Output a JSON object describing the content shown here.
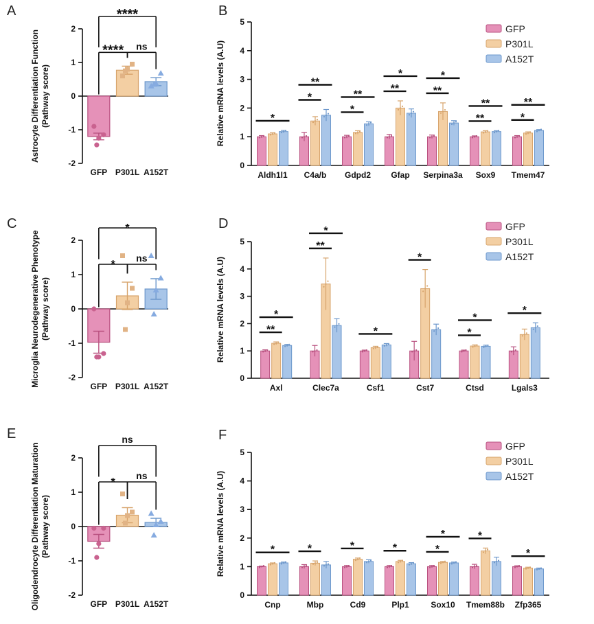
{
  "colors": {
    "GFP": "#e591b8",
    "P301L": "#f3cfa3",
    "A152T": "#a8c5e8",
    "GFP_edge": "#b8507f",
    "P301L_edge": "#d7a46c",
    "A152T_edge": "#6d98cc",
    "GFP_dot": "#c9628f",
    "P301L_dot": "#e1b385",
    "A152T_dot": "#86abe0"
  },
  "chart_data": [
    {
      "id": "A",
      "letter": "A",
      "type": "bar",
      "title": "",
      "ylabel": [
        "Astrocyte Differentiation Function",
        "(Pathway score)"
      ],
      "ylim": [
        -2,
        2
      ],
      "yticks": [
        -2,
        -1,
        0,
        1,
        2
      ],
      "categories": [
        "GFP",
        "P301L",
        "A152T"
      ],
      "values": [
        -1.2,
        0.77,
        0.43
      ],
      "errors": [
        0.1,
        0.12,
        0.12
      ],
      "points": [
        [
          -0.9,
          -1.15,
          -1.25,
          -1.45
        ],
        [
          0.6,
          0.95,
          0.8,
          0.75
        ],
        [
          0.3,
          0.68,
          0.38,
          0.35
        ]
      ],
      "comparisons": [
        {
          "from": 0,
          "to": 1,
          "label": "****",
          "level": 1
        },
        {
          "from": 1,
          "to": 2,
          "label": "ns",
          "level": 1
        },
        {
          "from": 0,
          "to": 2,
          "label": "****",
          "level": 2
        }
      ]
    },
    {
      "id": "C",
      "letter": "C",
      "type": "bar",
      "title": "",
      "ylabel": [
        "Microglia Neurodegenerative Phenotype",
        "(Pathway score)"
      ],
      "ylim": [
        -2,
        2
      ],
      "yticks": [
        -2,
        -1,
        0,
        1,
        2
      ],
      "categories": [
        "GFP",
        "P301L",
        "A152T"
      ],
      "values": [
        -0.97,
        0.38,
        0.58
      ],
      "errors": [
        0.32,
        0.4,
        0.3
      ],
      "points": [
        [
          0,
          -1.3,
          -1.4,
          -1.4
        ],
        [
          1.55,
          0.6,
          0.18,
          -0.6
        ],
        [
          1.55,
          0.9,
          0.55,
          -0.15
        ]
      ],
      "comparisons": [
        {
          "from": 0,
          "to": 1,
          "label": "*",
          "level": 1
        },
        {
          "from": 1,
          "to": 2,
          "label": "ns",
          "level": 1
        },
        {
          "from": 0,
          "to": 2,
          "label": "*",
          "level": 2
        }
      ]
    },
    {
      "id": "E",
      "letter": "E",
      "type": "bar",
      "title": "",
      "ylabel": [
        "Oligodendrocyte Differentiation Maturation",
        "(Pathway score)"
      ],
      "ylim": [
        -2,
        2
      ],
      "yticks": [
        -2,
        -1,
        0,
        1,
        2
      ],
      "categories": [
        "GFP",
        "P301L",
        "A152T"
      ],
      "values": [
        -0.43,
        0.33,
        0.12
      ],
      "errors": [
        0.2,
        0.22,
        0.12
      ],
      "points": [
        [
          -0.05,
          -0.05,
          -0.5,
          -0.9
        ],
        [
          0.95,
          0.42,
          0.32,
          0.1
        ],
        [
          0.38,
          0.15,
          0.05,
          -0.25
        ]
      ],
      "comparisons": [
        {
          "from": 0,
          "to": 1,
          "label": "*",
          "level": 1
        },
        {
          "from": 1,
          "to": 2,
          "label": "ns",
          "level": 1
        },
        {
          "from": 0,
          "to": 2,
          "label": "ns",
          "level": 2
        }
      ]
    },
    {
      "id": "B",
      "letter": "B",
      "type": "bar",
      "title": "",
      "ylabel": [
        "Relative mRNA levels (A.U)"
      ],
      "ylim": [
        0,
        5
      ],
      "yticks": [
        0,
        1,
        2,
        3,
        4,
        5
      ],
      "legend": [
        "GFP",
        "P301L",
        "A152T"
      ],
      "categories": [
        "Aldh1l1",
        "C4a/b",
        "Gdpd2",
        "Gfap",
        "Serpina3a",
        "Sox9",
        "Tmem47"
      ],
      "series": [
        {
          "name": "GFP",
          "values": [
            1.0,
            1.0,
            1.0,
            1.0,
            1.0,
            1.0,
            1.0
          ],
          "errors": [
            0.04,
            0.15,
            0.05,
            0.08,
            0.06,
            0.03,
            0.04
          ]
        },
        {
          "name": "P301L",
          "values": [
            1.1,
            1.55,
            1.15,
            2.0,
            1.88,
            1.17,
            1.13
          ],
          "errors": [
            0.04,
            0.15,
            0.06,
            0.25,
            0.3,
            0.04,
            0.04
          ]
        },
        {
          "name": "A152T",
          "values": [
            1.18,
            1.75,
            1.45,
            1.82,
            1.48,
            1.18,
            1.22
          ],
          "errors": [
            0.04,
            0.2,
            0.07,
            0.15,
            0.08,
            0.03,
            0.03
          ]
        }
      ],
      "comparisons": [
        {
          "group": 0,
          "from": 0,
          "to": 2,
          "label": "*",
          "level": 1
        },
        {
          "group": 1,
          "from": 0,
          "to": 1,
          "label": "*",
          "level": 1
        },
        {
          "group": 1,
          "from": 0,
          "to": 2,
          "label": "**",
          "level": 2
        },
        {
          "group": 2,
          "from": 0,
          "to": 1,
          "label": "*",
          "level": 1
        },
        {
          "group": 2,
          "from": 0,
          "to": 2,
          "label": "**",
          "level": 2
        },
        {
          "group": 3,
          "from": 0,
          "to": 1,
          "label": "**",
          "level": 1
        },
        {
          "group": 3,
          "from": 0,
          "to": 2,
          "label": "*",
          "level": 2
        },
        {
          "group": 4,
          "from": 0,
          "to": 1,
          "label": "**",
          "level": 1
        },
        {
          "group": 4,
          "from": 0,
          "to": 2,
          "label": "*",
          "level": 2
        },
        {
          "group": 5,
          "from": 0,
          "to": 1,
          "label": "**",
          "level": 1
        },
        {
          "group": 5,
          "from": 0,
          "to": 2,
          "label": "**",
          "level": 2
        },
        {
          "group": 6,
          "from": 0,
          "to": 1,
          "label": "*",
          "level": 1
        },
        {
          "group": 6,
          "from": 0,
          "to": 2,
          "label": "**",
          "level": 2
        }
      ]
    },
    {
      "id": "D",
      "letter": "D",
      "type": "bar",
      "title": "",
      "ylabel": [
        "Relative mRNA levels (A.U)"
      ],
      "ylim": [
        0,
        5
      ],
      "yticks": [
        0,
        1,
        2,
        3,
        4,
        5
      ],
      "legend": [
        "GFP",
        "P301L",
        "A152T"
      ],
      "categories": [
        "Axl",
        "Clec7a",
        "Csf1",
        "Cst7",
        "Ctsd",
        "Lgals3"
      ],
      "series": [
        {
          "name": "GFP",
          "values": [
            1.0,
            1.0,
            1.0,
            1.0,
            1.0,
            1.0
          ],
          "errors": [
            0.04,
            0.2,
            0.03,
            0.35,
            0.03,
            0.15
          ]
        },
        {
          "name": "P301L",
          "values": [
            1.28,
            3.45,
            1.12,
            3.28,
            1.18,
            1.6
          ],
          "errors": [
            0.05,
            0.95,
            0.05,
            0.7,
            0.04,
            0.2
          ]
        },
        {
          "name": "A152T",
          "values": [
            1.2,
            1.93,
            1.22,
            1.78,
            1.17,
            1.85
          ],
          "errors": [
            0.04,
            0.25,
            0.05,
            0.2,
            0.04,
            0.18
          ]
        }
      ],
      "comparisons": [
        {
          "group": 0,
          "from": 0,
          "to": 1,
          "label": "**",
          "level": 1
        },
        {
          "group": 0,
          "from": 0,
          "to": 2,
          "label": "*",
          "level": 2
        },
        {
          "group": 1,
          "from": 0,
          "to": 1,
          "label": "**",
          "level": 1
        },
        {
          "group": 1,
          "from": 0,
          "to": 2,
          "label": "*",
          "level": 2
        },
        {
          "group": 2,
          "from": 0,
          "to": 2,
          "label": "*",
          "level": 1
        },
        {
          "group": 3,
          "from": 0,
          "to": 1,
          "label": "*",
          "level": 1
        },
        {
          "group": 4,
          "from": 0,
          "to": 1,
          "label": "*",
          "level": 1
        },
        {
          "group": 4,
          "from": 0,
          "to": 2,
          "label": "*",
          "level": 2
        },
        {
          "group": 5,
          "from": 0,
          "to": 2,
          "label": "*",
          "level": 1
        }
      ]
    },
    {
      "id": "F",
      "letter": "F",
      "type": "bar",
      "title": "",
      "ylabel": [
        "Relative mRNA levels (A.U)"
      ],
      "ylim": [
        0,
        5
      ],
      "yticks": [
        0,
        1,
        2,
        3,
        4,
        5
      ],
      "legend": [
        "GFP",
        "P301L",
        "A152T"
      ],
      "categories": [
        "Cnp",
        "Mbp",
        "Cd9",
        "Plp1",
        "Sox10",
        "Tmem88b",
        "Zfp365"
      ],
      "series": [
        {
          "name": "GFP",
          "values": [
            1.0,
            1.0,
            1.0,
            1.0,
            1.0,
            1.0,
            1.0
          ],
          "errors": [
            0.02,
            0.07,
            0.04,
            0.04,
            0.04,
            0.08,
            0.03
          ]
        },
        {
          "name": "P301L",
          "values": [
            1.1,
            1.12,
            1.26,
            1.18,
            1.15,
            1.55,
            0.95
          ],
          "errors": [
            0.03,
            0.08,
            0.04,
            0.04,
            0.03,
            0.1,
            0.03
          ]
        },
        {
          "name": "A152T",
          "values": [
            1.13,
            1.06,
            1.18,
            1.1,
            1.13,
            1.18,
            0.92
          ],
          "errors": [
            0.03,
            0.12,
            0.06,
            0.04,
            0.03,
            0.15,
            0.03
          ]
        }
      ],
      "comparisons": [
        {
          "group": 0,
          "from": 0,
          "to": 2,
          "label": "*",
          "level": 1
        },
        {
          "group": 1,
          "from": 0,
          "to": 1,
          "label": "*",
          "level": 1
        },
        {
          "group": 2,
          "from": 0,
          "to": 1,
          "label": "*",
          "level": 1
        },
        {
          "group": 3,
          "from": 0,
          "to": 1,
          "label": "*",
          "level": 1
        },
        {
          "group": 4,
          "from": 0,
          "to": 1,
          "label": "*",
          "level": 1
        },
        {
          "group": 4,
          "from": 0,
          "to": 2,
          "label": "*",
          "level": 2
        },
        {
          "group": 5,
          "from": 0,
          "to": 1,
          "label": "*",
          "level": 1
        },
        {
          "group": 6,
          "from": 0,
          "to": 2,
          "label": "*",
          "level": 1
        }
      ]
    }
  ]
}
